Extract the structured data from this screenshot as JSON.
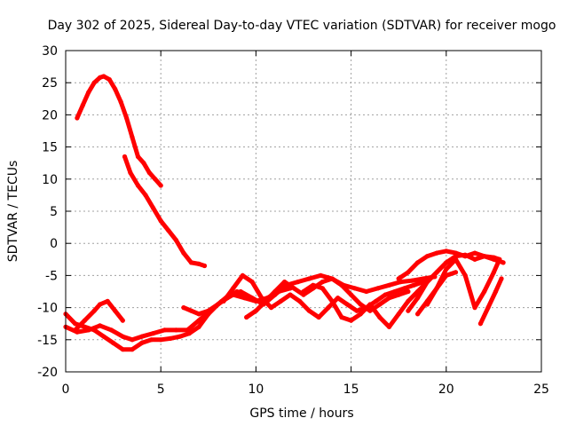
{
  "chart_data": {
    "type": "line",
    "title": "Day 302 of 2025, Sidereal Day-to-day VTEC variation (SDTVAR) for receiver mogo",
    "xlabel": "GPS time / hours",
    "ylabel": "SDTVAR / TECUs",
    "xlim": [
      0,
      25
    ],
    "ylim": [
      -20,
      30
    ],
    "xticks": [
      0,
      5,
      10,
      15,
      20,
      25
    ],
    "yticks": [
      -20,
      -15,
      -10,
      -5,
      0,
      5,
      10,
      15,
      20,
      25,
      30
    ],
    "grid": true,
    "legend": "none",
    "series_color": "#ff0000",
    "series": [
      {
        "name": "arc-1",
        "x": [
          0.6,
          0.9,
          1.2,
          1.5,
          1.8,
          2.0,
          2.3,
          2.6,
          2.9,
          3.2,
          3.5,
          3.8,
          4.1,
          4.4,
          4.7,
          5.0
        ],
        "y": [
          19.5,
          21.5,
          23.5,
          25.0,
          25.8,
          26.0,
          25.5,
          24.0,
          22.0,
          19.5,
          16.5,
          13.5,
          12.5,
          11.0,
          10.0,
          9.0
        ]
      },
      {
        "name": "arc-2",
        "x": [
          3.1,
          3.4,
          3.8,
          4.2,
          4.6,
          5.0,
          5.4,
          5.8,
          6.2,
          6.6,
          7.0,
          7.3
        ],
        "y": [
          13.5,
          11.0,
          9.0,
          7.5,
          5.5,
          3.5,
          2.0,
          0.5,
          -1.5,
          -3.0,
          -3.2,
          -3.5
        ]
      },
      {
        "name": "arc-3",
        "x": [
          0.0,
          0.5,
          1.0,
          1.5,
          2.0,
          2.5,
          3.0,
          3.5,
          4.0,
          4.5,
          5.0,
          5.5,
          6.0,
          6.5,
          7.0,
          7.5,
          8.0,
          8.5,
          9.0,
          9.5,
          10.0
        ],
        "y": [
          -11.0,
          -12.5,
          -13.0,
          -13.5,
          -14.5,
          -15.5,
          -16.5,
          -16.5,
          -15.5,
          -15.0,
          -15.0,
          -14.8,
          -14.5,
          -14.0,
          -13.0,
          -11.0,
          -9.5,
          -8.5,
          -7.5,
          -8.5,
          -9.0
        ]
      },
      {
        "name": "arc-4",
        "x": [
          0.0,
          0.6,
          1.2,
          1.8,
          2.4,
          3.0,
          3.5,
          4.0,
          4.6,
          5.2,
          5.8,
          6.4,
          7.0,
          7.6,
          8.2,
          8.8,
          9.4,
          10.0,
          10.6,
          11.2,
          11.8
        ],
        "y": [
          -13.0,
          -13.8,
          -13.5,
          -12.8,
          -13.5,
          -14.5,
          -15.0,
          -14.5,
          -14.0,
          -13.5,
          -13.5,
          -13.5,
          -12.0,
          -10.5,
          -9.0,
          -8.0,
          -8.5,
          -9.0,
          -8.5,
          -7.5,
          -7.0
        ]
      },
      {
        "name": "arc-5",
        "x": [
          0.5,
          1.0,
          1.5,
          1.8,
          2.2,
          2.6,
          3.0
        ],
        "y": [
          -13.5,
          -12.0,
          -10.5,
          -9.5,
          -9.0,
          -10.5,
          -12.0
        ]
      },
      {
        "name": "arc-6",
        "x": [
          6.2,
          6.6,
          7.0,
          7.5,
          8.0,
          8.6,
          9.2,
          9.8,
          10.4,
          11.0,
          11.6,
          12.2,
          12.8,
          13.4,
          14.0,
          14.6,
          15.2,
          15.8,
          16.4,
          17.0,
          17.6,
          18.2,
          18.8,
          19.4
        ],
        "y": [
          -10.0,
          -10.5,
          -11.0,
          -10.5,
          -9.5,
          -8.0,
          -7.5,
          -8.5,
          -9.5,
          -8.0,
          -6.5,
          -6.0,
          -5.5,
          -5.0,
          -5.5,
          -6.5,
          -7.0,
          -7.5,
          -7.0,
          -6.5,
          -6.0,
          -5.8,
          -5.5,
          -5.2
        ]
      },
      {
        "name": "arc-7",
        "x": [
          8.3,
          8.8,
          9.3,
          9.8,
          10.3,
          10.8,
          11.3,
          11.8,
          12.3,
          12.8,
          13.3,
          13.8,
          14.3,
          14.8,
          15.3,
          15.8,
          16.3,
          16.8,
          17.3,
          17.8,
          18.3,
          18.8
        ],
        "y": [
          -9.0,
          -7.0,
          -5.0,
          -6.0,
          -8.5,
          -10.0,
          -9.0,
          -8.0,
          -9.0,
          -10.5,
          -11.5,
          -10.0,
          -8.5,
          -9.5,
          -10.5,
          -10.0,
          -9.0,
          -8.0,
          -7.5,
          -7.0,
          -6.5,
          -6.0
        ]
      },
      {
        "name": "arc-8",
        "x": [
          9.5,
          10.0,
          10.5,
          11.0,
          11.5,
          12.0,
          12.5,
          13.0,
          13.5,
          14.0,
          14.5,
          15.0,
          15.5,
          16.0,
          16.5,
          17.0,
          17.5,
          18.0
        ],
        "y": [
          -11.5,
          -10.5,
          -9.0,
          -7.5,
          -6.0,
          -7.0,
          -8.0,
          -7.0,
          -6.0,
          -5.5,
          -6.5,
          -8.0,
          -9.5,
          -10.5,
          -9.5,
          -8.5,
          -8.0,
          -7.5
        ]
      },
      {
        "name": "arc-9",
        "x": [
          12.5,
          13.0,
          13.5,
          14.0,
          14.5,
          15.0,
          15.5,
          16.0,
          16.5,
          17.0,
          17.5,
          18.0,
          18.5,
          19.0,
          19.5,
          20.0,
          20.5
        ],
        "y": [
          -7.5,
          -6.5,
          -7.0,
          -9.0,
          -11.5,
          -12.0,
          -11.0,
          -9.5,
          -11.5,
          -13.0,
          -11.0,
          -9.0,
          -7.5,
          -6.0,
          -4.5,
          -3.0,
          -2.0
        ]
      },
      {
        "name": "arc-10",
        "x": [
          17.5,
          18.0,
          18.5,
          19.0,
          19.5,
          20.0,
          20.5,
          21.0,
          21.5,
          22.0,
          22.5,
          23.0
        ],
        "y": [
          -5.5,
          -4.5,
          -3.0,
          -2.0,
          -1.5,
          -1.2,
          -1.5,
          -2.0,
          -1.5,
          -2.0,
          -2.5,
          -3.0
        ]
      },
      {
        "name": "arc-11",
        "x": [
          18.0,
          18.5,
          19.0,
          19.5,
          20.0,
          20.5,
          21.0,
          21.5,
          22.0,
          22.5,
          22.8
        ],
        "y": [
          -10.5,
          -8.5,
          -6.0,
          -4.5,
          -3.0,
          -2.0,
          -1.8,
          -2.5,
          -2.0,
          -2.2,
          -2.5
        ]
      },
      {
        "name": "arc-12",
        "x": [
          18.5,
          19.0,
          19.5,
          20.0,
          20.5,
          21.0,
          21.5,
          22.0,
          22.5,
          22.8
        ],
        "y": [
          -11.0,
          -9.0,
          -7.0,
          -4.0,
          -2.5,
          -5.0,
          -10.0,
          -7.5,
          -4.5,
          -2.5
        ]
      },
      {
        "name": "arc-13",
        "x": [
          19.0,
          19.5,
          20.0,
          20.5
        ],
        "y": [
          -9.5,
          -7.0,
          -5.0,
          -4.5
        ]
      },
      {
        "name": "arc-14",
        "x": [
          21.8,
          22.2,
          22.6,
          22.9
        ],
        "y": [
          -12.5,
          -10.0,
          -7.5,
          -5.5
        ]
      }
    ]
  }
}
